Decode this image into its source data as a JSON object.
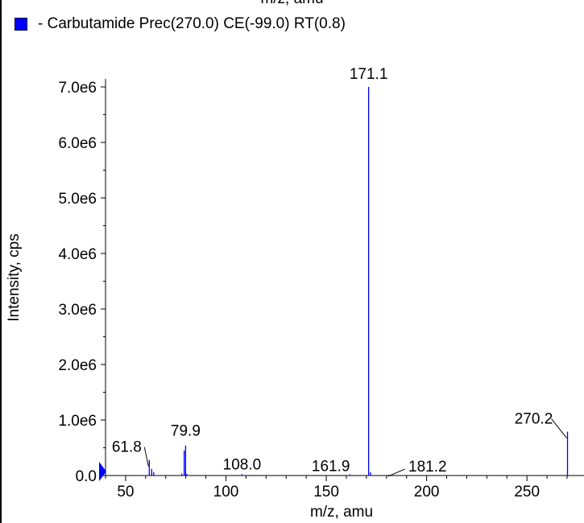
{
  "clipped_top_text": "m/z, amu",
  "legend": {
    "label": "- Carbutamide Prec(270.0) CE(-99.0) RT(0.8)",
    "color": "#0000ff"
  },
  "chart_data": {
    "type": "bar",
    "title": "",
    "xlabel": "m/z, amu",
    "ylabel": "Intensity, cps",
    "xlim": [
      40,
      272
    ],
    "ylim": [
      0,
      7100000
    ],
    "x_ticks": [
      50,
      100,
      150,
      200,
      250
    ],
    "x_tick_labels": [
      "50",
      "100",
      "150",
      "200",
      "250"
    ],
    "y_ticks": [
      0,
      1000000,
      2000000,
      3000000,
      4000000,
      5000000,
      6000000,
      7000000
    ],
    "y_tick_labels": [
      "0.0",
      "1.0e6",
      "2.0e6",
      "3.0e6",
      "4.0e6",
      "5.0e6",
      "6.0e6",
      "7.0e6"
    ],
    "series": [
      {
        "color": "#0000ff",
        "peaks": [
          {
            "x": 61.8,
            "y": 280000
          },
          {
            "x": 63.0,
            "y": 120000
          },
          {
            "x": 64.0,
            "y": 60000
          },
          {
            "x": 78.0,
            "y": 35000
          },
          {
            "x": 79.2,
            "y": 450000
          },
          {
            "x": 79.9,
            "y": 540000
          },
          {
            "x": 80.5,
            "y": 30000
          },
          {
            "x": 108.0,
            "y": 25000
          },
          {
            "x": 161.9,
            "y": 20000
          },
          {
            "x": 171.1,
            "y": 7000000
          },
          {
            "x": 172.0,
            "y": 60000
          },
          {
            "x": 181.2,
            "y": 15000
          },
          {
            "x": 270.2,
            "y": 790000
          }
        ]
      }
    ],
    "peak_labels": [
      {
        "x": 61.8,
        "y": 280000,
        "text": "61.8"
      },
      {
        "x": 79.9,
        "y": 540000,
        "text": "79.9"
      },
      {
        "x": 108.0,
        "y": 25000,
        "text": "108.0"
      },
      {
        "x": 161.9,
        "y": 20000,
        "text": "161.9"
      },
      {
        "x": 171.1,
        "y": 7000000,
        "text": "171.1"
      },
      {
        "x": 181.2,
        "y": 15000,
        "text": "181.2"
      },
      {
        "x": 270.2,
        "y": 790000,
        "text": "270.2"
      }
    ]
  }
}
